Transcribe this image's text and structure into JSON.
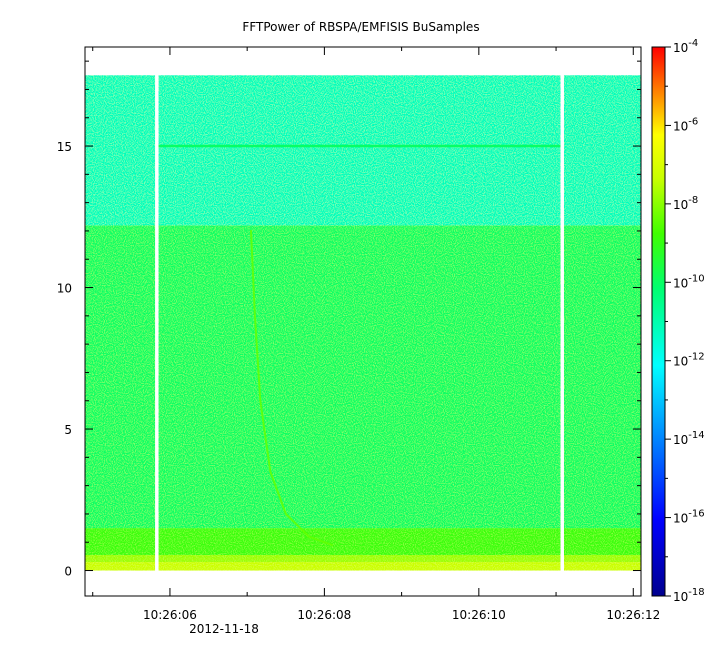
{
  "chart_data": {
    "type": "heatmap",
    "title": "FFTPower of RBSPA/EMFISIS  BuSamples",
    "xlabel": "",
    "ylabel": "",
    "x_ticks": [
      {
        "label": "10:26:06",
        "value": 6
      },
      {
        "label": "10:26:08",
        "value": 8
      },
      {
        "label": "10:26:10",
        "value": 10
      },
      {
        "label": "10:26:12",
        "value": 12
      }
    ],
    "x_date_label": "2012-11-18",
    "xlim": [
      4.9,
      12.1
    ],
    "y_ticks": [
      0,
      5,
      10,
      15
    ],
    "ylim": [
      -0.9,
      18.5
    ],
    "data_extent_y": [
      0,
      17.5
    ],
    "data_gaps_x": [
      5.83,
      11.08
    ],
    "colorbar": {
      "scale": "log",
      "range": [
        1e-18,
        0.0001
      ],
      "tick_base": "10",
      "tick_exponents": [
        "-4",
        "-6",
        "-8",
        "-10",
        "-12",
        "-14",
        "-16",
        "-18"
      ]
    },
    "bands": [
      {
        "y": [
          0,
          0.3
        ],
        "log_power": -7.3
      },
      {
        "y": [
          0.3,
          0.55
        ],
        "log_power": -7.8
      },
      {
        "y": [
          0.55,
          1.5
        ],
        "log_power": -8.9
      },
      {
        "y": [
          1.5,
          12.2
        ],
        "log_power": -10.0
      },
      {
        "y": [
          12.2,
          17.5
        ],
        "log_power": -11.2
      }
    ],
    "features": [
      {
        "type": "line",
        "y": 15.0,
        "x": [
          5.83,
          11.08
        ],
        "log_power": -10.0
      },
      {
        "type": "whistler",
        "points": [
          [
            7.05,
            12.0
          ],
          [
            7.1,
            9.0
          ],
          [
            7.17,
            6.0
          ],
          [
            7.3,
            3.5
          ],
          [
            7.5,
            2.0
          ],
          [
            7.8,
            1.2
          ],
          [
            8.1,
            0.9
          ]
        ],
        "log_power": -8.4
      }
    ]
  }
}
